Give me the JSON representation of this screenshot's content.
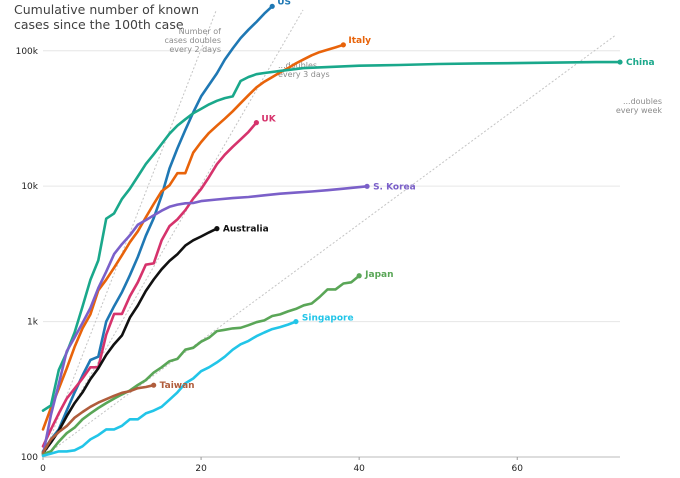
{
  "chart_data": {
    "type": "line",
    "title": "Cumulative number of known cases since the 100th case",
    "xlabel": "",
    "ylabel": "",
    "scale_y": "log",
    "xlim": [
      0,
      73
    ],
    "ylim": [
      100,
      200000
    ],
    "x_ticks": [
      0,
      20,
      40,
      60
    ],
    "x_tick_labels": [
      "0",
      "20",
      "40",
      "60"
    ],
    "y_ticks": [
      100,
      1000,
      10000,
      100000
    ],
    "y_tick_labels": [
      "100",
      "1k",
      "10k",
      "100k"
    ],
    "grid": "horizontal",
    "reference_lines": [
      {
        "label": "Number of cases doubles every 2 days",
        "doubling_days": 2
      },
      {
        "label": "...doubles every 3 days",
        "doubling_days": 3
      },
      {
        "label": "...doubles every week",
        "doubling_days": 7
      }
    ],
    "series": [
      {
        "name": "US",
        "color": "#1f78b4",
        "x": [
          0,
          1,
          2,
          3,
          4,
          5,
          6,
          7,
          8,
          9,
          10,
          11,
          12,
          13,
          14,
          15,
          16,
          17,
          18,
          19,
          20,
          21,
          22,
          23,
          24,
          25,
          26,
          27,
          28,
          29
        ],
        "y": [
          110,
          135,
          160,
          220,
          300,
          400,
          520,
          550,
          1000,
          1300,
          1650,
          2200,
          3000,
          4300,
          5800,
          8500,
          13500,
          19000,
          26000,
          35000,
          46000,
          56000,
          68000,
          86000,
          104000,
          124000,
          143000,
          163000,
          188000,
          213000
        ]
      },
      {
        "name": "Italy",
        "color": "#e8630a",
        "x": [
          0,
          1,
          2,
          3,
          4,
          5,
          6,
          7,
          8,
          9,
          10,
          11,
          12,
          13,
          14,
          15,
          16,
          17,
          18,
          19,
          20,
          21,
          22,
          23,
          24,
          25,
          26,
          27,
          28,
          29,
          30,
          31,
          32,
          33,
          34,
          35,
          36,
          37,
          38
        ],
        "y": [
          160,
          230,
          320,
          450,
          650,
          890,
          1130,
          1700,
          2040,
          2500,
          3090,
          3860,
          4640,
          5880,
          7380,
          9170,
          10150,
          12460,
          12460,
          17660,
          21160,
          24750,
          27980,
          31500,
          35700,
          41000,
          47000,
          53600,
          59100,
          63900,
          69200,
          74400,
          80600,
          86500,
          92500,
          97700,
          101700,
          105800,
          110600
        ]
      },
      {
        "name": "China",
        "color": "#1aa88b",
        "x": [
          0,
          1,
          2,
          3,
          4,
          5,
          6,
          7,
          8,
          9,
          10,
          11,
          12,
          13,
          14,
          15,
          16,
          17,
          18,
          19,
          20,
          21,
          22,
          23,
          24,
          25,
          26,
          27,
          28,
          30,
          33,
          36,
          40,
          45,
          50,
          55,
          60,
          65,
          70,
          73
        ],
        "y": [
          220,
          240,
          440,
          590,
          830,
          1290,
          2030,
          2830,
          5750,
          6290,
          8060,
          9580,
          11790,
          14560,
          17200,
          20500,
          24400,
          28000,
          31200,
          34500,
          37200,
          40200,
          42700,
          44700,
          46000,
          59800,
          64000,
          67100,
          68500,
          71000,
          74500,
          75700,
          77600,
          78500,
          79800,
          80700,
          81100,
          81700,
          82400,
          82500
        ]
      },
      {
        "name": "UK",
        "color": "#d6336c",
        "x": [
          0,
          1,
          2,
          3,
          4,
          5,
          6,
          7,
          8,
          9,
          10,
          11,
          12,
          13,
          14,
          15,
          16,
          17,
          18,
          19,
          20,
          21,
          22,
          23,
          24,
          25,
          26,
          27
        ],
        "y": [
          120,
          160,
          210,
          270,
          320,
          380,
          460,
          460,
          800,
          1140,
          1140,
          1540,
          1950,
          2630,
          2690,
          3980,
          5070,
          5680,
          6650,
          8080,
          9530,
          11660,
          14540,
          17090,
          19520,
          22140,
          25150,
          29470
        ]
      },
      {
        "name": "S. Korea",
        "color": "#7b60c9",
        "x": [
          0,
          1,
          2,
          3,
          4,
          5,
          6,
          7,
          8,
          9,
          10,
          11,
          12,
          13,
          14,
          15,
          16,
          17,
          18,
          19,
          20,
          22,
          24,
          26,
          28,
          30,
          32,
          34,
          36,
          38,
          41
        ],
        "y": [
          104,
          204,
          346,
          602,
          763,
          977,
          1260,
          1766,
          2337,
          3150,
          3736,
          4335,
          5186,
          5621,
          6088,
          6593,
          7041,
          7313,
          7478,
          7513,
          7755,
          7979,
          8162,
          8320,
          8565,
          8799,
          8961,
          9137,
          9332,
          9583,
          9976
        ]
      },
      {
        "name": "Australia",
        "color": "#111111",
        "x": [
          0,
          1,
          2,
          3,
          4,
          5,
          6,
          7,
          8,
          9,
          10,
          11,
          12,
          13,
          14,
          15,
          16,
          17,
          18,
          19,
          20,
          21,
          22
        ],
        "y": [
          107,
          128,
          156,
          200,
          250,
          300,
          376,
          452,
          568,
          681,
          791,
          1071,
          1314,
          1682,
          2044,
          2432,
          2806,
          3143,
          3640,
          3984,
          4250,
          4557,
          4860
        ]
      },
      {
        "name": "Japan",
        "color": "#5aa657",
        "x": [
          0,
          1,
          2,
          3,
          4,
          5,
          6,
          7,
          8,
          9,
          10,
          11,
          12,
          13,
          14,
          15,
          16,
          17,
          18,
          19,
          20,
          21,
          22,
          23,
          24,
          25,
          26,
          27,
          28,
          29,
          30,
          31,
          32,
          33,
          34,
          35,
          36,
          37,
          38,
          39,
          40
        ],
        "y": [
          105,
          110,
          130,
          150,
          165,
          190,
          210,
          230,
          250,
          270,
          290,
          310,
          340,
          370,
          420,
          460,
          510,
          530,
          620,
          640,
          710,
          760,
          850,
          870,
          890,
          900,
          940,
          990,
          1020,
          1100,
          1130,
          1190,
          1240,
          1320,
          1360,
          1520,
          1730,
          1730,
          1910,
          1950,
          2180
        ]
      },
      {
        "name": "Singapore",
        "color": "#22c5e8",
        "x": [
          0,
          1,
          2,
          3,
          4,
          5,
          6,
          7,
          8,
          9,
          10,
          11,
          12,
          13,
          14,
          15,
          16,
          17,
          18,
          19,
          20,
          21,
          22,
          23,
          24,
          25,
          26,
          27,
          28,
          29,
          30,
          31,
          32
        ],
        "y": [
          102,
          106,
          110,
          110,
          112,
          120,
          135,
          145,
          160,
          160,
          170,
          190,
          190,
          210,
          220,
          235,
          265,
          300,
          350,
          380,
          430,
          460,
          500,
          550,
          620,
          680,
          720,
          780,
          830,
          880,
          910,
          950,
          1000
        ]
      },
      {
        "name": "Taiwan",
        "color": "#b05d3c",
        "x": [
          0,
          1,
          2,
          3,
          4,
          5,
          6,
          7,
          8,
          9,
          10,
          11,
          12,
          13,
          14
        ],
        "y": [
          108,
          135,
          153,
          169,
          195,
          215,
          235,
          252,
          267,
          283,
          298,
          306,
          322,
          329,
          339
        ]
      }
    ]
  }
}
